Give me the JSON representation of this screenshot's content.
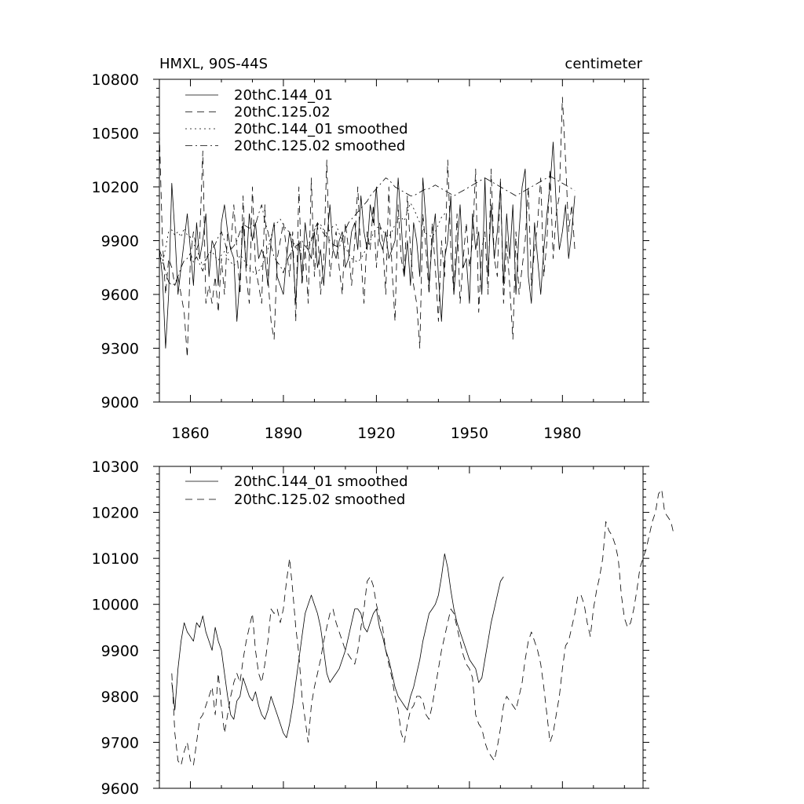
{
  "colors": {
    "background": "#ffffff",
    "ink": "#000000"
  },
  "chart_data": [
    {
      "type": "line",
      "title_left": "HMXL, 90S-44S",
      "title_right": "centimeter",
      "xlim": [
        1850,
        2006
      ],
      "ylim": [
        9000,
        10800
      ],
      "xticks": [
        1860,
        1890,
        1920,
        1950,
        1980
      ],
      "xtick_labels": [
        "1860",
        "1890",
        "1920",
        "1950",
        "1980"
      ],
      "yticks": [
        9000,
        9300,
        9600,
        9900,
        10200,
        10500,
        10800
      ],
      "ytick_labels": [
        "9000",
        "9300",
        "9600",
        "9900",
        "10200",
        "10500",
        "10800"
      ],
      "legend_location": "upper-left",
      "series": [
        {
          "name": "20thC.144_01",
          "dash": "solid",
          "x_start": 1850,
          "x_step": 1,
          "values": [
            9850,
            9700,
            9300,
            9600,
            10220,
            9950,
            9600,
            9750,
            9900,
            10050,
            9850,
            9650,
            10000,
            9800,
            9900,
            10050,
            9700,
            9900,
            9850,
            9650,
            10000,
            10100,
            9950,
            9850,
            9800,
            9450,
            9700,
            10000,
            9750,
            10050,
            9900,
            10000,
            9800,
            9850,
            9800,
            9650,
            9900,
            10000,
            9700,
            9650,
            9600,
            9800,
            9950,
            9850,
            9550,
            9900,
            9700,
            10000,
            9850,
            9800,
            9950,
            9750,
            9850,
            9650,
            9900,
            10100,
            9850,
            9800,
            9900,
            9950,
            9750,
            9800,
            9950,
            10000,
            9850,
            10150,
            9950,
            9850,
            10100,
            10000,
            10200,
            9900,
            9850,
            9950,
            9800,
            9850,
            9900,
            10250,
            10000,
            9700,
            9900,
            9650,
            10000,
            9900,
            9700,
            10250,
            10000,
            9650,
            9900,
            10050,
            9700,
            9450,
            9800,
            9900,
            10150,
            9600,
            9850,
            10100,
            9750,
            9800,
            9550,
            10050,
            9850,
            9950,
            9600,
            10250,
            9700,
            10100,
            9800,
            9950,
            10200,
            9650,
            10050,
            9800,
            10100,
            9600,
            9950,
            10200,
            10300,
            9700,
            9550,
            10000,
            9800,
            9600,
            9850,
            10050,
            10200,
            10450,
            10100,
            9850,
            9950,
            10100,
            9800,
            9950,
            10150
          ]
        },
        {
          "name": "20thC.125.02",
          "dash": "dashed",
          "x_start": 1850,
          "x_step": 1,
          "values": [
            10500,
            9900,
            9600,
            9800,
            9750,
            9650,
            9700,
            9600,
            9500,
            9250,
            9800,
            9950,
            9850,
            9900,
            10400,
            9550,
            9650,
            9550,
            9700,
            9500,
            9800,
            9600,
            9950,
            9850,
            10100,
            9850,
            9600,
            10150,
            9700,
            9550,
            10200,
            9750,
            9650,
            9550,
            10100,
            9700,
            9450,
            9350,
            9800,
            9900,
            10000,
            9850,
            9700,
            9950,
            9450,
            10200,
            9650,
            9850,
            9550,
            10250,
            9700,
            10000,
            9600,
            9800,
            10350,
            9700,
            9850,
            9950,
            9750,
            9600,
            10000,
            9850,
            9650,
            9900,
            10200,
            9800,
            9550,
            9950,
            9850,
            10100,
            9750,
            10000,
            9900,
            9600,
            10200,
            9750,
            9450,
            10100,
            9800,
            9700,
            10150,
            9850,
            9650,
            9550,
            9300,
            10050,
            9850,
            9600,
            10000,
            9750,
            9450,
            9900,
            9700,
            10350,
            9850,
            9600,
            10050,
            9550,
            9800,
            10000,
            9750,
            9900,
            10300,
            9500,
            9850,
            9950,
            9600,
            10300,
            9800,
            9700,
            10250,
            9550,
            9900,
            9650,
            9350,
            9950,
            9600,
            9750,
            9900,
            10200,
            9650,
            9850,
            10000,
            10250,
            9700,
            9900,
            10300,
            9800,
            10050,
            10150,
            10700,
            10350,
            9950,
            10100,
            9850
          ]
        },
        {
          "name": "20thC.144_01 smoothed",
          "dash": "dotted",
          "x_start": 1850,
          "x_step": 1,
          "values": [
            9830,
            9770,
            9860,
            9950,
            9960,
            9930,
            9950,
            9920,
            9970,
            9930,
            9920,
            9880,
            9860,
            9800,
            9760,
            9800,
            9830,
            9840,
            9810,
            9790,
            9820,
            9840,
            9800,
            9780,
            9760,
            9780,
            9820,
            9800,
            9770,
            9750,
            9730,
            9710,
            9730,
            9760,
            9800,
            9850,
            9920,
            9980,
            10000,
            10020,
            9990,
            9960,
            9950,
            9900,
            9860,
            9850,
            9840,
            9860,
            9880,
            9910,
            9960,
            9990,
            9990,
            9960,
            9940,
            9960,
            9980,
            9990,
            9940,
            9900,
            9860,
            9830,
            9800,
            9790,
            9780,
            9800,
            9830,
            9870,
            9900,
            9940,
            9970,
            9980,
            9960,
            9930,
            9920,
            9950,
            9990,
            10020,
            10030,
            10010,
            10060,
            10110,
            10080,
            10040,
            10000,
            9970,
            9940,
            9930,
            9920,
            9950,
            9990,
            10030,
            10050,
            10060
          ]
        },
        {
          "name": "20thC.125.02 smoothed",
          "dash": "dashdot",
          "x_start": 1850,
          "x_step": 1,
          "values": [
            9850,
            9800,
            9720,
            9670,
            9650,
            9660,
            9700,
            9750,
            9790,
            9800,
            9830,
            9780,
            9810,
            9770,
            9730,
            9790,
            9830,
            9850,
            9880,
            9920,
            9950,
            9900,
            9830,
            9850,
            9870,
            9900,
            9950,
            9990,
            9980,
            9970,
            9980,
            9990,
            10050,
            10100,
            10010,
            9950,
            9870,
            9810,
            9780,
            9760,
            9720,
            9780,
            9820,
            9850,
            9870,
            9880,
            9900,
            9870,
            9850,
            9900,
            9960,
            10000,
            9970,
            9940,
            9920,
            9900,
            9880,
            9870,
            9860,
            9910,
            9960,
            10000,
            10020,
            10040,
            10060,
            10080,
            10100,
            10120,
            10150,
            10170,
            10190,
            10210,
            10230,
            10250,
            10240,
            10220,
            10200,
            10190,
            10180,
            10170,
            10160,
            10150,
            10150,
            10160,
            10170,
            10180,
            10190,
            10190,
            10200,
            10210,
            10200,
            10190,
            10180,
            10170,
            10160,
            10150,
            10160,
            10170,
            10180,
            10190,
            10200,
            10210,
            10220,
            10230,
            10240,
            10250,
            10240,
            10230,
            10220,
            10210,
            10200,
            10190,
            10180,
            10170,
            10160,
            10150,
            10160,
            10170,
            10180,
            10190,
            10200,
            10210,
            10220,
            10230,
            10240,
            10250,
            10260,
            10250,
            10240,
            10230,
            10220,
            10210,
            10200,
            10190,
            10180
          ]
        }
      ]
    },
    {
      "type": "line",
      "xlim": [
        1850,
        2006
      ],
      "ylim": [
        9600,
        10300
      ],
      "xticks": [
        1860,
        1890,
        1920,
        1950,
        1980
      ],
      "yticks": [
        9600,
        9700,
        9800,
        9900,
        10000,
        10100,
        10200,
        10300
      ],
      "ytick_labels": [
        "9600",
        "9700",
        "9800",
        "9900",
        "10000",
        "10100",
        "10200",
        "10300"
      ],
      "legend_location": "upper-left",
      "series": [
        {
          "name": "20thC.144_01 smoothed",
          "dash": "solid",
          "x_start": 1854,
          "x_step": 1,
          "values": [
            9830,
            9770,
            9860,
            9920,
            9960,
            9940,
            9930,
            9920,
            9960,
            9950,
            9975,
            9940,
            9920,
            9900,
            9950,
            9920,
            9900,
            9850,
            9800,
            9760,
            9750,
            9790,
            9800,
            9840,
            9820,
            9800,
            9790,
            9810,
            9780,
            9760,
            9750,
            9770,
            9800,
            9780,
            9760,
            9740,
            9720,
            9710,
            9740,
            9780,
            9830,
            9880,
            9930,
            9980,
            10000,
            10020,
            10000,
            9980,
            9950,
            9900,
            9850,
            9830,
            9840,
            9850,
            9860,
            9880,
            9900,
            9930,
            9960,
            9990,
            9990,
            9980,
            9950,
            9940,
            9960,
            9980,
            9990,
            9950,
            9930,
            9900,
            9880,
            9850,
            9820,
            9800,
            9790,
            9780,
            9770,
            9800,
            9820,
            9850,
            9880,
            9920,
            9950,
            9980,
            9990,
            10000,
            10020,
            10060,
            10110,
            10080,
            10030,
            9990,
            9960,
            9940,
            9920,
            9900,
            9880,
            9870,
            9860,
            9830,
            9840,
            9880,
            9920,
            9960,
            9990,
            10020,
            10050,
            10060
          ]
        },
        {
          "name": "20thC.125.02 smoothed",
          "dash": "dashed",
          "x_start": 1854,
          "x_step": 1,
          "values": [
            9850,
            9720,
            9660,
            9650,
            9680,
            9700,
            9660,
            9650,
            9700,
            9750,
            9760,
            9780,
            9800,
            9820,
            9760,
            9850,
            9780,
            9720,
            9760,
            9800,
            9830,
            9850,
            9830,
            9880,
            9920,
            9950,
            9980,
            9900,
            9850,
            9830,
            9870,
            9920,
            9990,
            9980,
            9990,
            9960,
            9990,
            10050,
            10100,
            10030,
            9950,
            9890,
            9800,
            9750,
            9700,
            9780,
            9820,
            9850,
            9880,
            9920,
            9950,
            9980,
            9990,
            9960,
            9940,
            9920,
            9900,
            9890,
            9880,
            9870,
            9900,
            9950,
            9990,
            10050,
            10060,
            10040,
            10000,
            9970,
            9950,
            9900,
            9870,
            9840,
            9800,
            9770,
            9720,
            9700,
            9740,
            9770,
            9780,
            9800,
            9800,
            9790,
            9760,
            9750,
            9780,
            9820,
            9860,
            9900,
            9930,
            9960,
            9990,
            9980,
            9950,
            9920,
            9890,
            9870,
            9860,
            9840,
            9760,
            9740,
            9730,
            9700,
            9680,
            9670,
            9660,
            9690,
            9730,
            9780,
            9800,
            9790,
            9780,
            9770,
            9800,
            9830,
            9880,
            9920,
            9940,
            9920,
            9900,
            9870,
            9820,
            9760,
            9700,
            9720,
            9760,
            9800,
            9860,
            9910,
            9920,
            9950,
            9980,
            10020,
            10020,
            10000,
            9960,
            9930,
            9990,
            10030,
            10060,
            10100,
            10180,
            10160,
            10150,
            10130,
            10100,
            10020,
            9970,
            9950,
            9960,
            9990,
            10030,
            10080,
            10100,
            10120,
            10150,
            10180,
            10200,
            10240,
            10250,
            10200,
            10190,
            10180,
            10150
          ]
        }
      ]
    }
  ]
}
